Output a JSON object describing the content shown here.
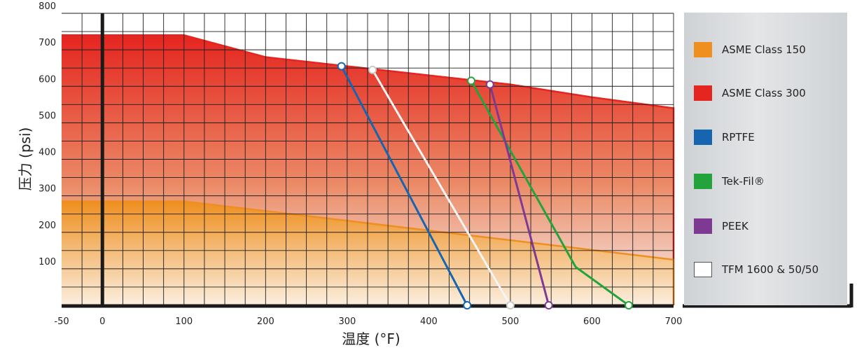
{
  "chart_data": {
    "type": "area",
    "xlabel": "温度 (°F)",
    "ylabel": "压力 (psi)",
    "xlim": [
      -50,
      700
    ],
    "ylim": [
      0,
      800
    ],
    "x_ticks": [
      "-50",
      "0",
      "100",
      "200",
      "300",
      "400",
      "500",
      "600",
      "700"
    ],
    "y_ticks": [
      "100",
      "200",
      "300",
      "400",
      "500",
      "600",
      "700",
      "800"
    ],
    "grid": true,
    "legend_position": "right",
    "series": [
      {
        "name": "ASME Class 150",
        "kind": "area",
        "color": "#ee8f1f",
        "points": [
          [
            -50,
            285
          ],
          [
            100,
            285
          ],
          [
            700,
            125
          ]
        ]
      },
      {
        "name": "ASME Class 300",
        "kind": "area",
        "color": "#e52520",
        "points": [
          [
            -50,
            740
          ],
          [
            100,
            740
          ],
          [
            200,
            680
          ],
          [
            300,
            655
          ],
          [
            400,
            630
          ],
          [
            500,
            605
          ],
          [
            600,
            570
          ],
          [
            700,
            540
          ]
        ]
      },
      {
        "name": "RPTFE",
        "kind": "line",
        "color": "#1565b0",
        "points": [
          [
            293,
            655
          ],
          [
            447,
            0
          ]
        ]
      },
      {
        "name": "Tek-Fil®",
        "kind": "line",
        "color": "#23a33c",
        "points": [
          [
            452,
            615
          ],
          [
            580,
            105
          ],
          [
            645,
            0
          ]
        ]
      },
      {
        "name": "PEEK",
        "kind": "line",
        "color": "#7e3a93",
        "points": [
          [
            475,
            605
          ],
          [
            547,
            0
          ]
        ]
      },
      {
        "name": "TFM 1600 & 50/50",
        "kind": "line",
        "color": "#f4f4f4",
        "points": [
          [
            331,
            645
          ],
          [
            500,
            0
          ]
        ]
      }
    ]
  }
}
